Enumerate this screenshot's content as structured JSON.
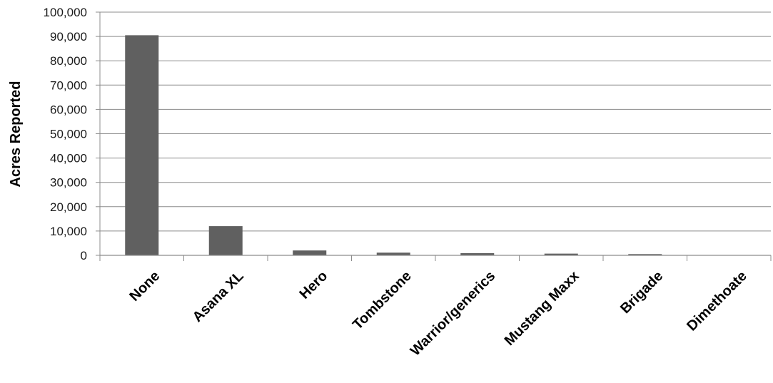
{
  "chart_data": {
    "type": "bar",
    "title": "",
    "xlabel": "",
    "ylabel": "Acres Reported",
    "categories": [
      "None",
      "Asana XL",
      "Hero",
      "Tombstone",
      "Warrior/generics",
      "Mustang Maxx",
      "Brigade",
      "Dimethoate"
    ],
    "values": [
      90500,
      12000,
      2000,
      1100,
      900,
      700,
      500,
      100
    ],
    "ylim": [
      0,
      100000
    ],
    "yticks": [
      0,
      10000,
      20000,
      30000,
      40000,
      50000,
      60000,
      70000,
      80000,
      90000,
      100000
    ],
    "ytick_labels": [
      "0",
      "10,000",
      "20,000",
      "30,000",
      "40,000",
      "50,000",
      "60,000",
      "70,000",
      "80,000",
      "90,000",
      "100,000"
    ],
    "grid": true,
    "legend": "none",
    "colors": {
      "bar": "#606060",
      "grid": "#8c8c8c",
      "axis": "#8c8c8c"
    }
  }
}
